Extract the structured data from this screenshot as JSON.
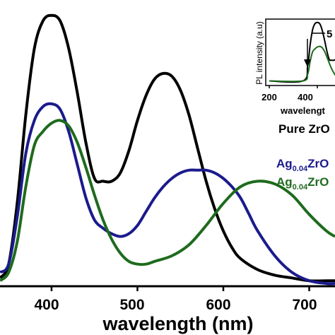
{
  "chart_data": {
    "type": "line",
    "xlabel": "wavelength (nm)",
    "ylabel": "",
    "xlim": [
      340,
      730
    ],
    "ylim": [
      0,
      1.0
    ],
    "xticks": [
      "400",
      "500",
      "600",
      "700"
    ],
    "xtick_values": [
      400,
      500,
      600,
      700
    ],
    "grid": false,
    "legend_position": "right",
    "legend": [
      {
        "base": "Pure ZrO",
        "sub": "",
        "rest": "",
        "color": "#000000"
      },
      {
        "base": "Ag",
        "sub": "0.04",
        "rest": "ZrO",
        "color": "#1b1b8c"
      },
      {
        "base": "Ag",
        "sub": "0.04",
        "rest": "ZrO",
        "color": "#1e6b1e"
      }
    ],
    "series": [
      {
        "color": "#000000",
        "x": [
          340,
          350,
          360,
          370,
          380,
          390,
          400,
          410,
          420,
          430,
          440,
          450,
          460,
          470,
          480,
          490,
          500,
          510,
          520,
          530,
          540,
          550,
          560,
          570,
          580,
          590,
          600,
          610,
          620,
          640,
          660,
          680,
          700,
          720,
          730
        ],
        "y": [
          0.03,
          0.08,
          0.3,
          0.62,
          0.86,
          0.96,
          0.98,
          0.96,
          0.86,
          0.7,
          0.52,
          0.39,
          0.38,
          0.38,
          0.41,
          0.49,
          0.6,
          0.69,
          0.75,
          0.77,
          0.76,
          0.71,
          0.62,
          0.5,
          0.38,
          0.28,
          0.2,
          0.14,
          0.1,
          0.06,
          0.04,
          0.03,
          0.02,
          0.02,
          0.02
        ]
      },
      {
        "color": "#1b1b8c",
        "x": [
          340,
          350,
          360,
          370,
          380,
          390,
          400,
          410,
          420,
          430,
          440,
          450,
          460,
          470,
          480,
          490,
          500,
          510,
          520,
          530,
          540,
          550,
          560,
          570,
          580,
          590,
          600,
          610,
          620,
          630,
          640,
          660,
          680,
          700,
          720,
          730
        ],
        "y": [
          0.05,
          0.08,
          0.25,
          0.48,
          0.6,
          0.65,
          0.66,
          0.64,
          0.56,
          0.44,
          0.32,
          0.24,
          0.21,
          0.19,
          0.18,
          0.19,
          0.22,
          0.27,
          0.32,
          0.36,
          0.39,
          0.41,
          0.42,
          0.42,
          0.42,
          0.41,
          0.39,
          0.36,
          0.32,
          0.26,
          0.2,
          0.11,
          0.05,
          0.02,
          0.01,
          0.01
        ]
      },
      {
        "color": "#1e6b1e",
        "x": [
          340,
          350,
          360,
          370,
          380,
          390,
          400,
          410,
          420,
          430,
          440,
          450,
          460,
          470,
          480,
          490,
          500,
          510,
          520,
          540,
          560,
          580,
          600,
          620,
          640,
          660,
          680,
          700,
          720,
          730
        ],
        "y": [
          0.02,
          0.05,
          0.16,
          0.36,
          0.51,
          0.56,
          0.59,
          0.6,
          0.58,
          0.52,
          0.43,
          0.33,
          0.24,
          0.17,
          0.12,
          0.09,
          0.08,
          0.08,
          0.09,
          0.11,
          0.15,
          0.22,
          0.3,
          0.36,
          0.38,
          0.37,
          0.33,
          0.26,
          0.2,
          0.18
        ]
      }
    ],
    "inset": {
      "ylabel": "PL intensity (a.u)",
      "xlabel": "wavelengt",
      "xticks": [
        "200",
        "400"
      ],
      "xtick_values": [
        200,
        400
      ],
      "xlim": [
        200,
        500
      ],
      "ylim": [
        0,
        1.0
      ],
      "annotation": "5",
      "series": [
        {
          "color": "#000000",
          "x": [
            200,
            340,
            360,
            370,
            380,
            390,
            400,
            410,
            420,
            430,
            440,
            450,
            460,
            470,
            480,
            490,
            500
          ],
          "y": [
            0.05,
            0.05,
            0.3,
            0.62,
            0.86,
            0.96,
            0.98,
            0.96,
            0.86,
            0.7,
            0.52,
            0.39,
            0.38,
            0.38,
            0.41,
            0.49,
            0.6
          ]
        },
        {
          "color": "#1e6b1e",
          "x": [
            200,
            340,
            360,
            370,
            380,
            390,
            400,
            410,
            420,
            430,
            440,
            450,
            460,
            470,
            480,
            490,
            500
          ],
          "y": [
            0.05,
            0.05,
            0.16,
            0.36,
            0.51,
            0.56,
            0.59,
            0.6,
            0.58,
            0.52,
            0.43,
            0.33,
            0.24,
            0.17,
            0.12,
            0.12,
            0.14
          ]
        }
      ]
    }
  }
}
